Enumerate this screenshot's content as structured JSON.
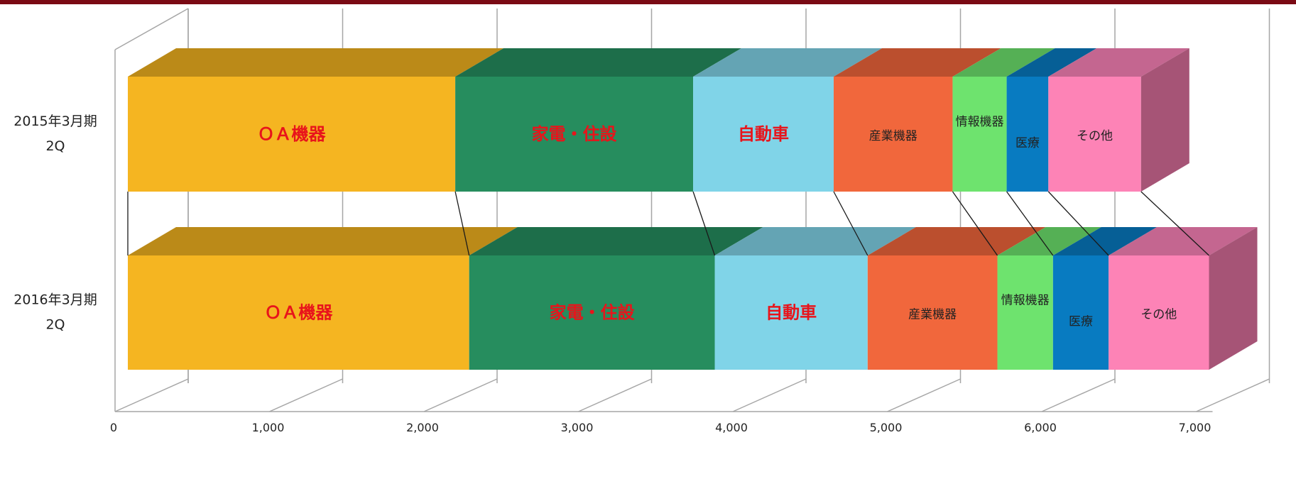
{
  "chart_data": {
    "type": "bar",
    "orientation": "horizontal",
    "stacked": true,
    "three_d": true,
    "categories": [
      "2015年3月期\n2Q",
      "2016年3月期\n2Q"
    ],
    "series": [
      {
        "name": "ＯＡ機器",
        "values": [
          2120,
          2210
        ],
        "color": "#f5b521",
        "top_color": "#bb8a18",
        "side_color": "#a87c14",
        "label_style": "big"
      },
      {
        "name": "家電・住設",
        "values": [
          1540,
          1590
        ],
        "color": "#268d5e",
        "top_color": "#1d6e4a",
        "side_color": "#1a6342",
        "label_style": "big"
      },
      {
        "name": "自動車",
        "values": [
          910,
          990
        ],
        "color": "#80d4e8",
        "top_color": "#64a4b4",
        "side_color": "#5a93a2",
        "label_style": "big"
      },
      {
        "name": "産業機器",
        "values": [
          770,
          840
        ],
        "color": "#f1673c",
        "top_color": "#bb4f2e",
        "side_color": "#a84629",
        "label_style": "small"
      },
      {
        "name": "情報機器",
        "values": [
          350,
          360
        ],
        "color": "#6ee36e",
        "top_color": "#55b055",
        "side_color": "#4c9e4c",
        "label_style": "small"
      },
      {
        "name": "医療",
        "values": [
          270,
          360
        ],
        "color": "#087bc1",
        "top_color": "#065f96",
        "side_color": "#055587",
        "label_style": "small"
      },
      {
        "name": "その他",
        "values": [
          600,
          650
        ],
        "color": "#fd83b6",
        "top_color": "#c46690",
        "side_color": "#a65476",
        "label_style": "small"
      }
    ],
    "x_ticks": [
      "0",
      "1,000",
      "2,000",
      "3,000",
      "4,000",
      "5,000",
      "6,000",
      "7,000"
    ],
    "xlim": [
      0,
      7000
    ],
    "grid": true,
    "legend": "none",
    "title": "",
    "xlabel": "",
    "ylabel": ""
  },
  "colors": {
    "top_border": "#7a0a14",
    "grid": "#a6a6a6",
    "connector": "#1a1a1a"
  }
}
